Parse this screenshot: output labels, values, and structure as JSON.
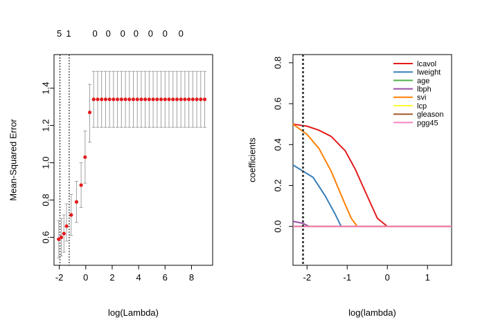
{
  "chart_data": [
    {
      "type": "scatter",
      "subtype": "cv-error-with-errorbars",
      "xlabel": "log(Lambda)",
      "ylabel": "Mean-Squared Error",
      "xlim": [
        -2.4,
        9.6
      ],
      "ylim": [
        0.45,
        1.58
      ],
      "xticks": [
        "-2",
        "0",
        "2",
        "4",
        "6",
        "8"
      ],
      "xtick_values": [
        -2,
        0,
        2,
        4,
        6,
        8
      ],
      "yticks": [
        "0.6",
        "0.8",
        "1.0",
        "1.2",
        "1.4"
      ],
      "ytick_values": [
        0.6,
        0.8,
        1.0,
        1.2,
        1.4
      ],
      "top_axis_labels": [
        "5",
        "1",
        "0",
        "0",
        "0",
        "0",
        "0",
        "0",
        "0"
      ],
      "top_axis_positions": [
        -2.0,
        -1.3,
        0.7,
        1.7,
        2.8,
        3.8,
        4.9,
        6.0,
        7.2
      ],
      "vlines": [
        -1.95,
        -1.25
      ],
      "x": [
        -2.05,
        -1.85,
        -1.65,
        -1.45,
        -1.1,
        -0.7,
        -0.35,
        -0.05,
        0.3,
        0.6,
        0.9,
        1.2,
        1.5,
        1.8,
        2.1,
        2.4,
        2.7,
        3.0,
        3.3,
        3.6,
        3.9,
        4.2,
        4.5,
        4.8,
        5.1,
        5.4,
        5.7,
        6.0,
        6.3,
        6.6,
        6.9,
        7.2,
        7.5,
        7.8,
        8.1,
        8.4,
        8.7,
        9.0
      ],
      "y": [
        0.59,
        0.6,
        0.62,
        0.66,
        0.72,
        0.79,
        0.88,
        1.03,
        1.27,
        1.34,
        1.34,
        1.34,
        1.34,
        1.34,
        1.34,
        1.34,
        1.34,
        1.34,
        1.34,
        1.34,
        1.34,
        1.34,
        1.34,
        1.34,
        1.34,
        1.34,
        1.34,
        1.34,
        1.34,
        1.34,
        1.34,
        1.34,
        1.34,
        1.34,
        1.34,
        1.34,
        1.34,
        1.34
      ],
      "upper": [
        0.69,
        0.7,
        0.72,
        0.78,
        0.83,
        0.9,
        1.0,
        1.17,
        1.42,
        1.49,
        1.49,
        1.49,
        1.49,
        1.49,
        1.49,
        1.49,
        1.49,
        1.49,
        1.49,
        1.49,
        1.49,
        1.49,
        1.49,
        1.49,
        1.49,
        1.49,
        1.49,
        1.49,
        1.49,
        1.49,
        1.49,
        1.49,
        1.49,
        1.49,
        1.49,
        1.49,
        1.49,
        1.49
      ],
      "lower": [
        0.49,
        0.5,
        0.52,
        0.58,
        0.61,
        0.68,
        0.76,
        0.89,
        1.11,
        1.19,
        1.19,
        1.19,
        1.19,
        1.19,
        1.19,
        1.19,
        1.19,
        1.19,
        1.19,
        1.19,
        1.19,
        1.19,
        1.19,
        1.19,
        1.19,
        1.19,
        1.19,
        1.19,
        1.19,
        1.19,
        1.19,
        1.19,
        1.19,
        1.19,
        1.19,
        1.19,
        1.19,
        1.19
      ],
      "point_color": "#e41a1c",
      "errorbar_color": "#a0a0a0"
    },
    {
      "type": "line",
      "subtype": "coefficient-path",
      "xlabel": "log(lambda)",
      "ylabel": "coefficients",
      "xlim": [
        -2.35,
        1.6
      ],
      "ylim": [
        -0.19,
        0.84
      ],
      "xticks": [
        "-2",
        "-1",
        "0",
        "1"
      ],
      "xtick_values": [
        -2,
        -1,
        0,
        1
      ],
      "yticks": [
        "0.0",
        "0.2",
        "0.4",
        "0.6",
        "0.8"
      ],
      "ytick_values": [
        0.0,
        0.2,
        0.4,
        0.6,
        0.8
      ],
      "vline": -2.1,
      "series": [
        {
          "name": "lcavol",
          "color": "#e41a1c",
          "x": [
            -2.35,
            -2.0,
            -1.7,
            -1.4,
            -1.05,
            -0.8,
            -0.55,
            -0.25,
            0.0,
            1.6
          ],
          "y": [
            0.5,
            0.49,
            0.47,
            0.44,
            0.37,
            0.28,
            0.17,
            0.04,
            0.0,
            0.0
          ]
        },
        {
          "name": "lweight",
          "color": "#377eb8",
          "x": [
            -2.35,
            -2.1,
            -1.85,
            -1.55,
            -1.3,
            -1.15,
            1.6
          ],
          "y": [
            0.3,
            0.27,
            0.24,
            0.15,
            0.06,
            0.0,
            0.0
          ]
        },
        {
          "name": "age",
          "color": "#4daf4a",
          "x": [
            -2.35,
            1.6
          ],
          "y": [
            0.0,
            0.0
          ]
        },
        {
          "name": "lbph",
          "color": "#984ea3",
          "x": [
            -2.35,
            -2.1,
            -1.95,
            1.6
          ],
          "y": [
            0.025,
            0.015,
            0.0,
            0.0
          ]
        },
        {
          "name": "svi",
          "color": "#ff7f00",
          "x": [
            -2.35,
            -2.0,
            -1.7,
            -1.4,
            -1.1,
            -0.9,
            -0.75,
            1.6
          ],
          "y": [
            0.5,
            0.45,
            0.38,
            0.27,
            0.13,
            0.04,
            0.0,
            0.0
          ]
        },
        {
          "name": "lcp",
          "color": "#ffff33",
          "x": [
            -2.35,
            1.6
          ],
          "y": [
            0.0,
            0.0
          ]
        },
        {
          "name": "gleason",
          "color": "#a65628",
          "x": [
            -2.35,
            1.6
          ],
          "y": [
            0.0,
            0.0
          ]
        },
        {
          "name": "pgg45",
          "color": "#f781bf",
          "x": [
            -2.35,
            1.6
          ],
          "y": [
            0.0,
            0.0
          ]
        }
      ],
      "legend_position": "top-right"
    }
  ]
}
